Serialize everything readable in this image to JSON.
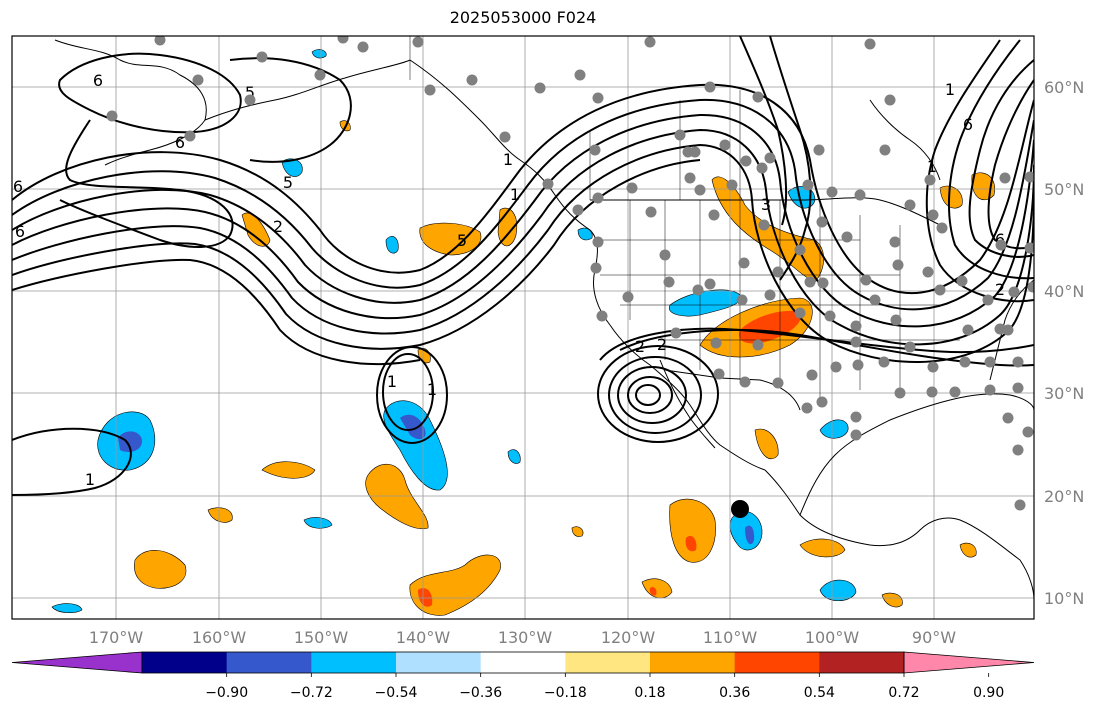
{
  "title": "2025053000 F024",
  "lat_labels": [
    "60°N",
    "50°N",
    "40°N",
    "30°N",
    "20°N",
    "10°N"
  ],
  "lon_labels": [
    "170°W",
    "160°W",
    "150°W",
    "140°W",
    "130°W",
    "120°W",
    "110°W",
    "100°W",
    "90°W"
  ],
  "colorbar": {
    "colors": [
      "#9932cc",
      "#00008b",
      "#3558cc",
      "#00bfff",
      "#b0e0ff",
      "#ffffff",
      "#ffe680",
      "#ffa500",
      "#ff4500",
      "#b22222",
      "#ff88aa"
    ],
    "tick_labels": [
      "−0.90",
      "−0.72",
      "−0.54",
      "−0.36",
      "−0.18",
      "0.18",
      "0.36",
      "0.54",
      "0.72",
      "0.90"
    ]
  },
  "contour_labels": [
    "6",
    "6",
    "6",
    "6",
    "5",
    "5",
    "2",
    "1",
    "5",
    "1",
    "2",
    "2",
    "1",
    "1",
    "3",
    "1",
    "6",
    "1",
    "6",
    "2",
    "1"
  ],
  "marker_color": "#808080"
}
